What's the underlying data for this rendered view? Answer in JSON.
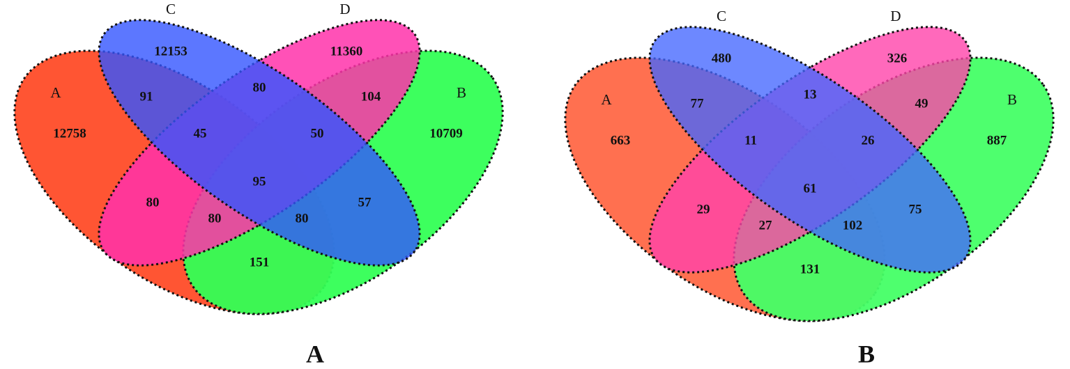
{
  "panels": [
    {
      "title": "A",
      "sets": [
        "A",
        "B",
        "C",
        "D"
      ],
      "regions": [
        "12758",
        "12153",
        "11360",
        "10709",
        "91",
        "80",
        "104",
        "45",
        "50",
        "95",
        "80",
        "57",
        "80",
        "80",
        "151"
      ]
    },
    {
      "title": "B",
      "sets": [
        "A",
        "B",
        "C",
        "D"
      ],
      "regions": [
        "663",
        "480",
        "326",
        "887",
        "77",
        "13",
        "49",
        "11",
        "26",
        "61",
        "29",
        "75",
        "27",
        "102",
        "131"
      ]
    }
  ]
}
